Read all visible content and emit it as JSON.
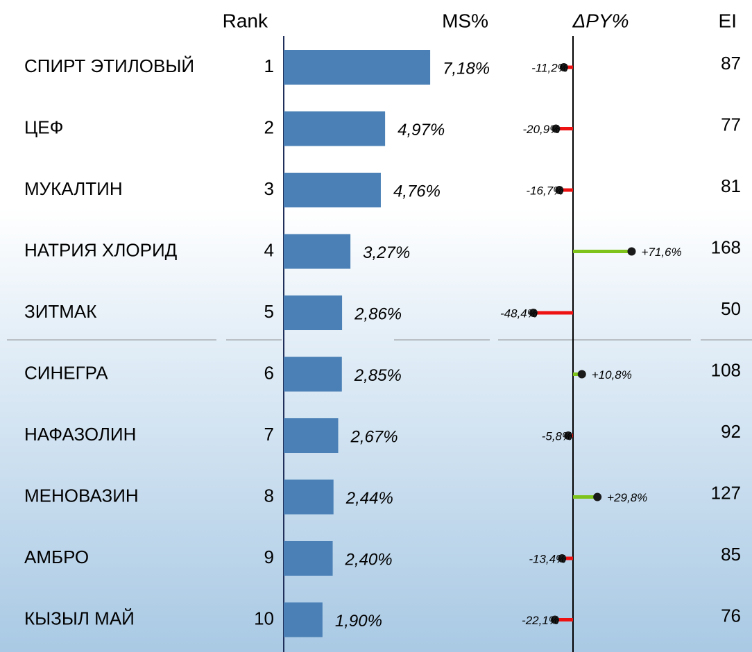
{
  "chart_data": {
    "type": "bar-table",
    "headers": {
      "rank": "Rank",
      "ms": "MS%",
      "delta": "ΔPY%",
      "ei": "EI"
    },
    "categories": [
      "СПИРТ ЭТИЛОВЫЙ",
      "ЦЕФ",
      "МУКАЛТИН",
      "НАТРИЯ ХЛОРИД",
      "ЗИТМАК",
      "СИНЕГРА",
      "НАФАЗОЛИН",
      "МЕНОВАЗИН",
      "АМБРО",
      "КЫЗЫЛ МАЙ"
    ],
    "ranks": [
      1,
      2,
      3,
      4,
      5,
      6,
      7,
      8,
      9,
      10
    ],
    "ms": {
      "color": "#4a80b5",
      "values": [
        7.18,
        4.97,
        4.76,
        3.27,
        2.86,
        2.85,
        2.67,
        2.44,
        2.4,
        1.9
      ],
      "value_labels": [
        "7,18%",
        "4,97%",
        "4,76%",
        "3,27%",
        "2,86%",
        "2,85%",
        "2,67%",
        "2,44%",
        "2,40%",
        "1,90%"
      ]
    },
    "delta_py": {
      "positive_color": "#7ec31c",
      "negative_color": "#ee1111",
      "values": [
        -11.2,
        -20.9,
        -16.7,
        71.6,
        -48.4,
        10.8,
        -5.8,
        29.8,
        -13.4,
        -22.1
      ],
      "value_labels": [
        "-11,2%",
        "-20,9%",
        "-16,7%",
        "+71,6%",
        "-48,4%",
        "+10,8%",
        "-5,8%",
        "+29,8%",
        "-13,4%",
        "-22,1%"
      ]
    },
    "ei": [
      87,
      77,
      81,
      168,
      50,
      108,
      92,
      127,
      85,
      76
    ]
  }
}
